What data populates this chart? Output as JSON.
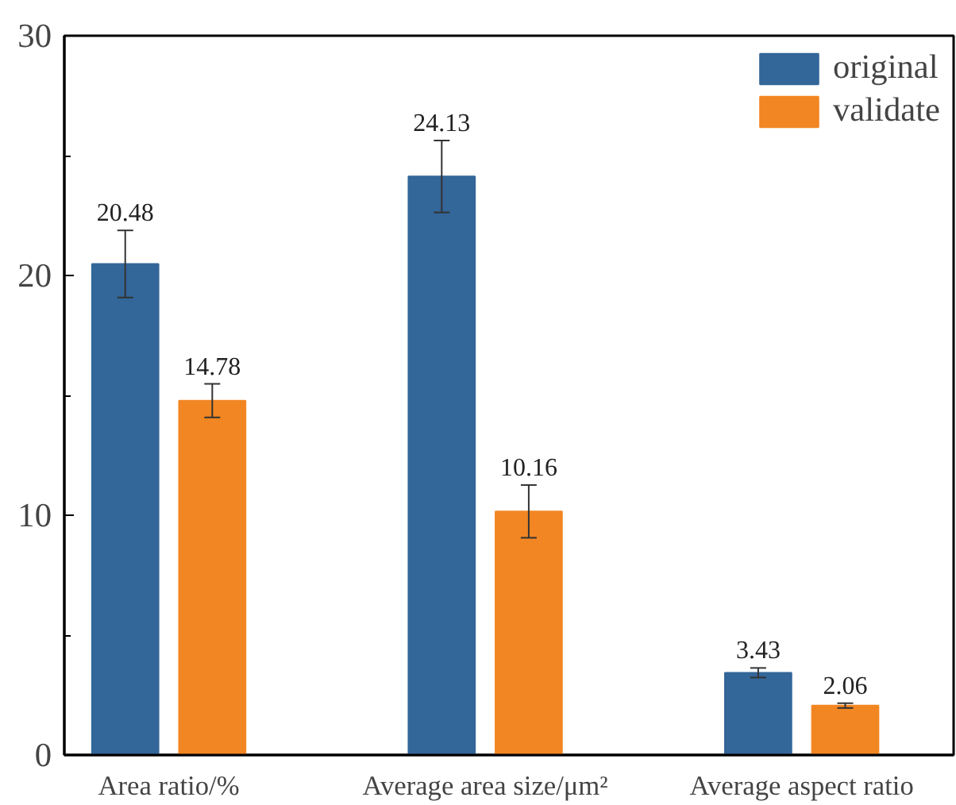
{
  "chart_data": {
    "type": "bar",
    "categories": [
      "Area ratio/%",
      "Average area size/μm²",
      "Average aspect ratio"
    ],
    "series": [
      {
        "name": "original",
        "color": "#336699",
        "values": [
          20.48,
          24.13,
          3.43
        ],
        "errors": [
          1.4,
          1.5,
          0.2
        ]
      },
      {
        "name": "validate",
        "color": "#f28622",
        "values": [
          14.78,
          10.16,
          2.06
        ],
        "errors": [
          0.7,
          1.1,
          0.1
        ]
      }
    ],
    "ylim": [
      0,
      30
    ],
    "yticks": [
      0,
      {
        "value": 5,
        "label": null
      },
      10,
      {
        "value": 15,
        "label": null
      },
      20,
      {
        "value": 25,
        "label": null
      },
      30
    ],
    "data_labels": true,
    "legend": "top right",
    "grid": false
  }
}
